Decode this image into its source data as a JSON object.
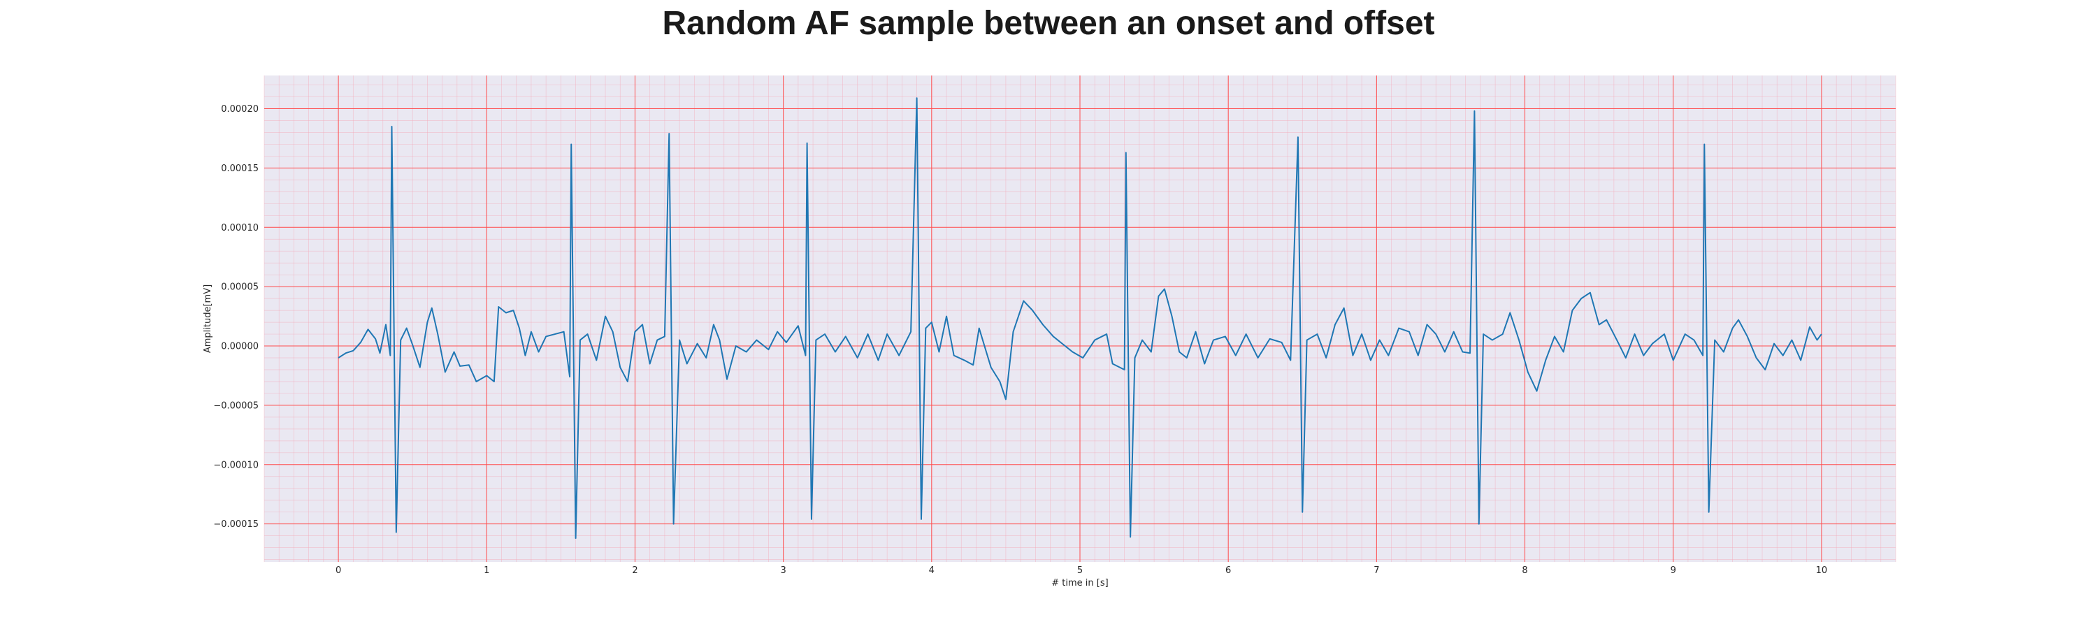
{
  "chart_data": {
    "type": "line",
    "title": "Random AF sample between an onset and offset",
    "xlabel": "# time in [s]",
    "ylabel": "Amplitude[mV]",
    "xlim": [
      -0.5,
      10.5
    ],
    "ylim": [
      -0.000182,
      0.000228
    ],
    "x_ticks": [
      0,
      1,
      2,
      3,
      4,
      5,
      6,
      7,
      8,
      9,
      10
    ],
    "x_tick_labels": [
      "0",
      "1",
      "2",
      "3",
      "4",
      "5",
      "6",
      "7",
      "8",
      "9",
      "10"
    ],
    "y_ticks": [
      -0.00015,
      -0.0001,
      -5e-05,
      0,
      5e-05,
      0.0001,
      0.00015,
      0.0002
    ],
    "y_tick_labels": [
      "−0.00015",
      "−0.00010",
      "−0.00005",
      "0.00000",
      "0.00005",
      "0.00010",
      "0.00015",
      "0.00020"
    ],
    "grid": "major red, minor pink",
    "colors": {
      "line": "#1f77b4",
      "plot_background": "#eae8f2",
      "major_grid": "#ff4d4d",
      "minor_grid": "#f4a6b6"
    },
    "series": [
      {
        "values": [
          [
            0.0,
            -1e-05
          ],
          [
            0.05,
            -6e-06
          ],
          [
            0.1,
            -4e-06
          ],
          [
            0.15,
            3e-06
          ],
          [
            0.2,
            1.4e-05
          ],
          [
            0.25,
            6e-06
          ],
          [
            0.28,
            -6e-06
          ],
          [
            0.32,
            1.8e-05
          ],
          [
            0.35,
            -8e-06
          ],
          [
            0.36,
            0.000185
          ],
          [
            0.39,
            -0.000157
          ],
          [
            0.42,
            5e-06
          ],
          [
            0.46,
            1.5e-05
          ],
          [
            0.5,
            1e-06
          ],
          [
            0.55,
            -1.8e-05
          ],
          [
            0.6,
            2e-05
          ],
          [
            0.63,
            3.2e-05
          ],
          [
            0.67,
            1e-05
          ],
          [
            0.72,
            -2.2e-05
          ],
          [
            0.78,
            -5e-06
          ],
          [
            0.82,
            -1.7e-05
          ],
          [
            0.88,
            -1.6e-05
          ],
          [
            0.93,
            -3e-05
          ],
          [
            1.0,
            -2.5e-05
          ],
          [
            1.05,
            -3e-05
          ],
          [
            1.08,
            3.3e-05
          ],
          [
            1.13,
            2.8e-05
          ],
          [
            1.18,
            3e-05
          ],
          [
            1.22,
            1.5e-05
          ],
          [
            1.26,
            -8e-06
          ],
          [
            1.3,
            1.2e-05
          ],
          [
            1.35,
            -5e-06
          ],
          [
            1.4,
            8e-06
          ],
          [
            1.46,
            1e-05
          ],
          [
            1.52,
            1.2e-05
          ],
          [
            1.56,
            -2.6e-05
          ],
          [
            1.57,
            0.00017
          ],
          [
            1.6,
            -0.000162
          ],
          [
            1.63,
            5e-06
          ],
          [
            1.68,
            1e-05
          ],
          [
            1.74,
            -1.2e-05
          ],
          [
            1.8,
            2.5e-05
          ],
          [
            1.85,
            1.2e-05
          ],
          [
            1.9,
            -1.8e-05
          ],
          [
            1.95,
            -3e-05
          ],
          [
            2.0,
            1.2e-05
          ],
          [
            2.05,
            1.8e-05
          ],
          [
            2.1,
            -1.5e-05
          ],
          [
            2.15,
            5e-06
          ],
          [
            2.2,
            8e-06
          ],
          [
            2.23,
            0.000179
          ],
          [
            2.26,
            -0.00015
          ],
          [
            2.3,
            5e-06
          ],
          [
            2.35,
            -1.5e-05
          ],
          [
            2.42,
            2e-06
          ],
          [
            2.48,
            -1e-05
          ],
          [
            2.53,
            1.8e-05
          ],
          [
            2.57,
            5e-06
          ],
          [
            2.62,
            -2.8e-05
          ],
          [
            2.68,
            0.0
          ],
          [
            2.75,
            -5e-06
          ],
          [
            2.82,
            5e-06
          ],
          [
            2.9,
            -3e-06
          ],
          [
            2.96,
            1.2e-05
          ],
          [
            3.02,
            3e-06
          ],
          [
            3.1,
            1.7e-05
          ],
          [
            3.15,
            -8e-06
          ],
          [
            3.16,
            0.000171
          ],
          [
            3.19,
            -0.000146
          ],
          [
            3.22,
            5e-06
          ],
          [
            3.28,
            1e-05
          ],
          [
            3.35,
            -5e-06
          ],
          [
            3.42,
            8e-06
          ],
          [
            3.5,
            -1e-05
          ],
          [
            3.57,
            1e-05
          ],
          [
            3.64,
            -1.2e-05
          ],
          [
            3.7,
            1e-05
          ],
          [
            3.78,
            -8e-06
          ],
          [
            3.86,
            1.2e-05
          ],
          [
            3.9,
            0.000209
          ],
          [
            3.93,
            -0.000146
          ],
          [
            3.96,
            1.5e-05
          ],
          [
            4.0,
            2e-05
          ],
          [
            4.05,
            -5e-06
          ],
          [
            4.1,
            2.5e-05
          ],
          [
            4.15,
            -8e-06
          ],
          [
            4.22,
            -1.2e-05
          ],
          [
            4.28,
            -1.6e-05
          ],
          [
            4.32,
            1.5e-05
          ],
          [
            4.4,
            -1.8e-05
          ],
          [
            4.46,
            -3e-05
          ],
          [
            4.5,
            -4.5e-05
          ],
          [
            4.55,
            1.2e-05
          ],
          [
            4.62,
            3.8e-05
          ],
          [
            4.68,
            3e-05
          ],
          [
            4.75,
            1.8e-05
          ],
          [
            4.82,
            8e-06
          ],
          [
            4.88,
            2e-06
          ],
          [
            4.95,
            -5e-06
          ],
          [
            5.02,
            -1e-05
          ],
          [
            5.1,
            5e-06
          ],
          [
            5.18,
            1e-05
          ],
          [
            5.22,
            -1.5e-05
          ],
          [
            5.3,
            -2e-05
          ],
          [
            5.31,
            0.000163
          ],
          [
            5.34,
            -0.000161
          ],
          [
            5.37,
            -1e-05
          ],
          [
            5.42,
            5e-06
          ],
          [
            5.48,
            -5e-06
          ],
          [
            5.53,
            4.2e-05
          ],
          [
            5.57,
            4.8e-05
          ],
          [
            5.62,
            2.5e-05
          ],
          [
            5.67,
            -5e-06
          ],
          [
            5.72,
            -1e-05
          ],
          [
            5.78,
            1.2e-05
          ],
          [
            5.84,
            -1.5e-05
          ],
          [
            5.9,
            5e-06
          ],
          [
            5.98,
            8e-06
          ],
          [
            6.05,
            -8e-06
          ],
          [
            6.12,
            1e-05
          ],
          [
            6.2,
            -1e-05
          ],
          [
            6.28,
            6e-06
          ],
          [
            6.36,
            3e-06
          ],
          [
            6.42,
            -1.2e-05
          ],
          [
            6.47,
            0.000176
          ],
          [
            6.5,
            -0.00014
          ],
          [
            6.53,
            5e-06
          ],
          [
            6.6,
            1e-05
          ],
          [
            6.66,
            -1e-05
          ],
          [
            6.72,
            1.8e-05
          ],
          [
            6.78,
            3.2e-05
          ],
          [
            6.84,
            -8e-06
          ],
          [
            6.9,
            1e-05
          ],
          [
            6.96,
            -1.2e-05
          ],
          [
            7.02,
            5e-06
          ],
          [
            7.08,
            -8e-06
          ],
          [
            7.15,
            1.5e-05
          ],
          [
            7.22,
            1.2e-05
          ],
          [
            7.28,
            -8e-06
          ],
          [
            7.34,
            1.8e-05
          ],
          [
            7.4,
            1e-05
          ],
          [
            7.46,
            -5e-06
          ],
          [
            7.52,
            1.2e-05
          ],
          [
            7.58,
            -5e-06
          ],
          [
            7.63,
            -6e-06
          ],
          [
            7.66,
            0.000198
          ],
          [
            7.69,
            -0.00015
          ],
          [
            7.72,
            1e-05
          ],
          [
            7.78,
            5e-06
          ],
          [
            7.85,
            1e-05
          ],
          [
            7.9,
            2.8e-05
          ],
          [
            7.96,
            5e-06
          ],
          [
            8.02,
            -2.2e-05
          ],
          [
            8.08,
            -3.8e-05
          ],
          [
            8.14,
            -1.2e-05
          ],
          [
            8.2,
            8e-06
          ],
          [
            8.26,
            -5e-06
          ],
          [
            8.32,
            3e-05
          ],
          [
            8.38,
            4e-05
          ],
          [
            8.44,
            4.5e-05
          ],
          [
            8.5,
            1.8e-05
          ],
          [
            8.55,
            2.2e-05
          ],
          [
            8.62,
            5e-06
          ],
          [
            8.68,
            -1e-05
          ],
          [
            8.74,
            1e-05
          ],
          [
            8.8,
            -8e-06
          ],
          [
            8.86,
            2e-06
          ],
          [
            8.94,
            1e-05
          ],
          [
            9.0,
            -1.2e-05
          ],
          [
            9.08,
            1e-05
          ],
          [
            9.14,
            5e-06
          ],
          [
            9.2,
            -8e-06
          ],
          [
            9.21,
            0.00017
          ],
          [
            9.24,
            -0.00014
          ],
          [
            9.28,
            5e-06
          ],
          [
            9.34,
            -5e-06
          ],
          [
            9.4,
            1.5e-05
          ],
          [
            9.44,
            2.2e-05
          ],
          [
            9.5,
            8e-06
          ],
          [
            9.56,
            -1e-05
          ],
          [
            9.62,
            -2e-05
          ],
          [
            9.68,
            2e-06
          ],
          [
            9.74,
            -8e-06
          ],
          [
            9.8,
            5e-06
          ],
          [
            9.86,
            -1.2e-05
          ],
          [
            9.92,
            1.6e-05
          ],
          [
            9.97,
            5e-06
          ],
          [
            10.0,
            1e-05
          ]
        ]
      }
    ]
  }
}
